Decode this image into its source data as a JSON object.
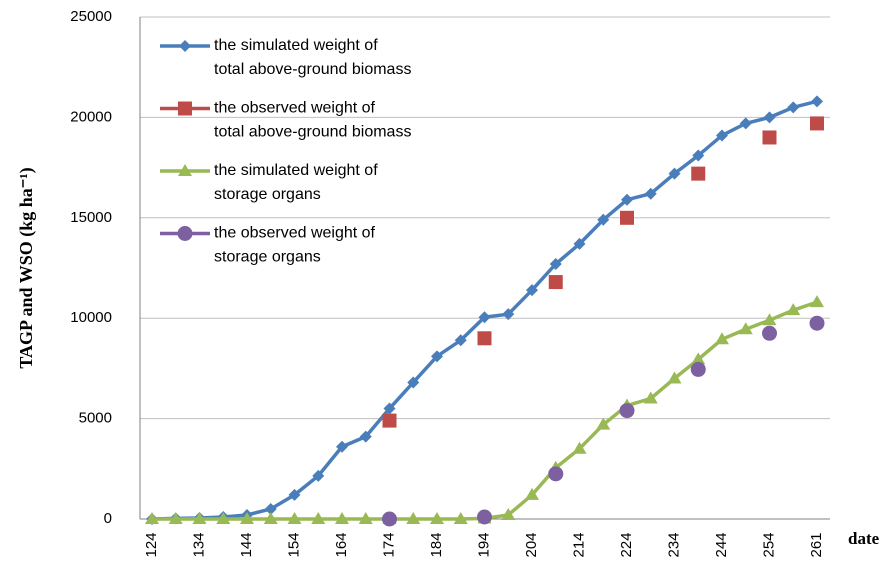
{
  "chart_data": {
    "type": "line",
    "y_label": "TAGP  and WSO (kg ha⁻¹)",
    "x_label": "date",
    "categories": [
      "124",
      null,
      "134",
      null,
      "144",
      null,
      "154",
      null,
      "164",
      null,
      "174",
      null,
      "184",
      null,
      "194",
      null,
      "204",
      null,
      "214",
      null,
      "224",
      null,
      "234",
      null,
      "244",
      null,
      "254",
      null,
      "261"
    ],
    "ylim": [
      0,
      25000
    ],
    "yticks": [
      0,
      5000,
      10000,
      15000,
      20000,
      25000
    ],
    "grid": true,
    "series": [
      {
        "name": "the simulated  weight of\ntotal above-ground biomass",
        "color": "#4a7ebb",
        "marker": "diamond",
        "line": true,
        "values": [
          0,
          30,
          50,
          100,
          200,
          500,
          1200,
          2150,
          3600,
          4100,
          5500,
          6800,
          8100,
          8900,
          10050,
          10200,
          11400,
          12700,
          13700,
          14900,
          15900,
          16200,
          17200,
          18100,
          19100,
          19700,
          20000,
          20500,
          20800
        ]
      },
      {
        "name": "the observed weight of\ntotal above-ground biomass",
        "color": "#be4b48",
        "marker": "square",
        "line": false,
        "values": [
          null,
          null,
          null,
          null,
          null,
          null,
          null,
          null,
          null,
          null,
          4900,
          null,
          null,
          null,
          9000,
          null,
          null,
          11800,
          null,
          null,
          15000,
          null,
          null,
          17200,
          null,
          null,
          19000,
          null,
          19700
        ]
      },
      {
        "name": "the simulated  weight of\nstorage organs",
        "color": "#98b954",
        "marker": "triangle",
        "line": true,
        "values": [
          0,
          0,
          0,
          0,
          0,
          0,
          0,
          0,
          0,
          0,
          0,
          0,
          0,
          0,
          30,
          200,
          1200,
          2550,
          3500,
          4700,
          5650,
          6000,
          7000,
          7950,
          8950,
          9450,
          9900,
          10400,
          10800
        ]
      },
      {
        "name": "the observed weight of\nstorage organs",
        "color": "#7d60a0",
        "marker": "circle",
        "line": false,
        "values": [
          null,
          null,
          null,
          null,
          null,
          null,
          null,
          null,
          null,
          null,
          0,
          null,
          null,
          null,
          100,
          null,
          null,
          2250,
          null,
          null,
          5400,
          null,
          null,
          7450,
          null,
          null,
          9250,
          null,
          9750
        ]
      }
    ]
  }
}
